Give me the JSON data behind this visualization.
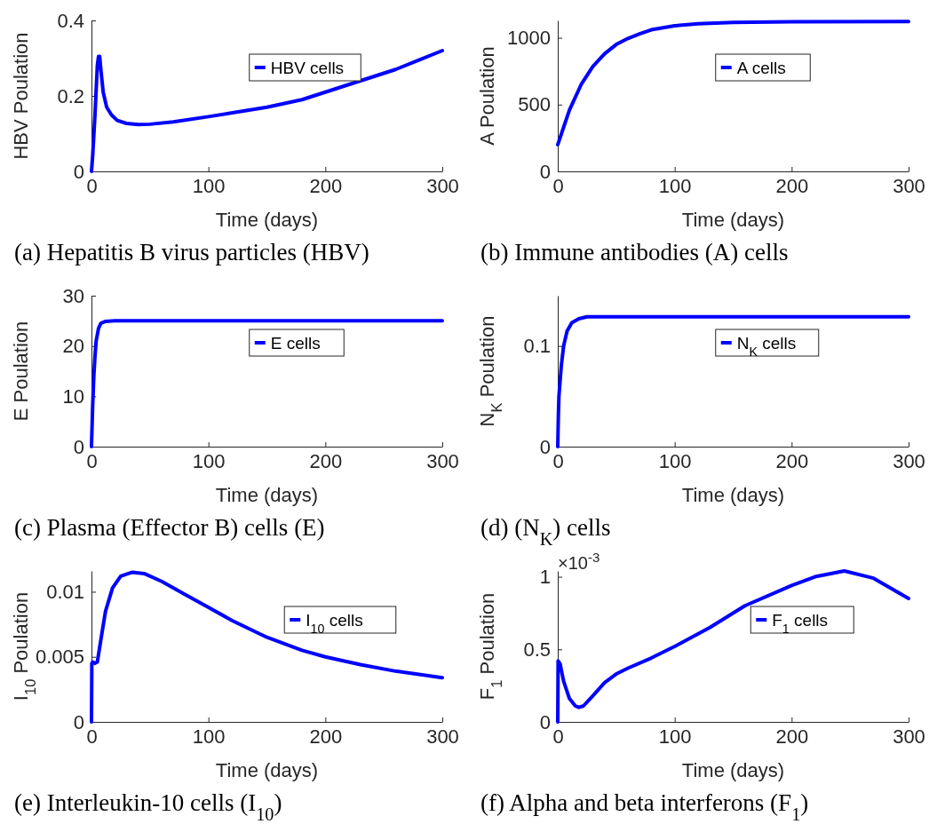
{
  "chart_data": [
    {
      "type": "line",
      "title": "(a) Hepatitis B virus particles (HBV)",
      "xlabel": "Time (days)",
      "ylabel": "HBV Poulation",
      "xlim": [
        0,
        300
      ],
      "xticks": [
        0,
        100,
        200,
        300
      ],
      "ylim": [
        0,
        0.4
      ],
      "yticks": [
        0,
        0.2,
        0.4
      ],
      "legend": "top right",
      "grid": false,
      "x": [
        0,
        1,
        3,
        5,
        6,
        7,
        8,
        10,
        13,
        17,
        22,
        30,
        40,
        50,
        70,
        100,
        130,
        150,
        180,
        200,
        230,
        260,
        280,
        300
      ],
      "series": [
        {
          "name": "HBV cells",
          "color": "#0000ff",
          "values": [
            0,
            0.04,
            0.15,
            0.28,
            0.305,
            0.305,
            0.27,
            0.21,
            0.17,
            0.15,
            0.135,
            0.127,
            0.124,
            0.125,
            0.131,
            0.145,
            0.16,
            0.17,
            0.19,
            0.21,
            0.24,
            0.27,
            0.295,
            0.32
          ]
        }
      ]
    },
    {
      "type": "line",
      "title": "(b) Immune antibodies (A) cells",
      "xlabel": "Time (days)",
      "ylabel": "A Poulation",
      "xlim": [
        0,
        300
      ],
      "xticks": [
        0,
        100,
        200,
        300
      ],
      "ylim": [
        0,
        1130
      ],
      "yticks": [
        0,
        500,
        1000
      ],
      "legend": "top right",
      "grid": false,
      "x": [
        0,
        10,
        20,
        30,
        40,
        50,
        60,
        70,
        80,
        100,
        120,
        150,
        200,
        300
      ],
      "series": [
        {
          "name": "A cells",
          "color": "#0000ff",
          "values": [
            200,
            460,
            650,
            785,
            880,
            950,
            995,
            1030,
            1060,
            1090,
            1105,
            1115,
            1120,
            1122
          ]
        }
      ]
    },
    {
      "type": "line",
      "title": "(c) Plasma (Effector B) cells (E)",
      "xlabel": "Time (days)",
      "ylabel": "E Poulation",
      "xlim": [
        0,
        300
      ],
      "xticks": [
        0,
        100,
        200,
        300
      ],
      "ylim": [
        0,
        30
      ],
      "yticks": [
        0,
        10,
        20,
        30
      ],
      "legend": "top right",
      "grid": false,
      "x": [
        0,
        1,
        2,
        3,
        4,
        6,
        8,
        12,
        20,
        300
      ],
      "series": [
        {
          "name": "E cells",
          "color": "#0000ff",
          "values": [
            0,
            8,
            14,
            18,
            21,
            23.5,
            24.5,
            24.9,
            25,
            25
          ]
        }
      ]
    },
    {
      "type": "line",
      "title": "(d) (N$_{K}$) cells",
      "xlabel": "Time (days)",
      "ylabel": "N$_{K}$ Poulation",
      "xlim": [
        0,
        300
      ],
      "xticks": [
        0,
        100,
        200,
        300
      ],
      "ylim": [
        0,
        0.15
      ],
      "yticks": [
        0,
        0.1
      ],
      "legend": "top right",
      "grid": false,
      "x": [
        0,
        0.5,
        1,
        3,
        5,
        8,
        12,
        18,
        25,
        40,
        300
      ],
      "series": [
        {
          "name": "N$_{K}$ cells",
          "color": "#0000ff",
          "values": [
            0,
            0.03,
            0.05,
            0.08,
            0.1,
            0.115,
            0.123,
            0.127,
            0.129,
            0.129,
            0.129
          ]
        }
      ]
    },
    {
      "type": "line",
      "title": "(e) Interleukin-10 cells (I$_{10}$)",
      "xlabel": "Time (days)",
      "ylabel": "I$_{10}$ Poulation",
      "xlim": [
        0,
        300
      ],
      "xticks": [
        0,
        100,
        200,
        300
      ],
      "ylim": [
        0,
        0.0116
      ],
      "yticks": [
        0,
        0.005,
        0.01
      ],
      "legend": "right",
      "grid": false,
      "x": [
        0,
        0.3,
        1,
        3,
        5,
        8,
        12,
        18,
        25,
        35,
        45,
        60,
        80,
        100,
        120,
        150,
        180,
        200,
        230,
        260,
        300
      ],
      "series": [
        {
          "name": "I$_{10}$ cells",
          "color": "#0000ff",
          "values": [
            0,
            0.0045,
            0.0046,
            0.0045,
            0.0046,
            0.0063,
            0.0085,
            0.0103,
            0.0112,
            0.0115,
            0.0114,
            0.0108,
            0.0098,
            0.0088,
            0.0078,
            0.0065,
            0.0055,
            0.005,
            0.0044,
            0.0039,
            0.0034
          ]
        }
      ]
    },
    {
      "type": "line",
      "title": "(f) Alpha and beta interferons (F$_{1}$)",
      "xlabel": "Time (days)",
      "ylabel": "F$_{1}$ Poulation",
      "annotations": [
        "×10$^{-3}$"
      ],
      "xlim": [
        0,
        300
      ],
      "xticks": [
        0,
        100,
        200,
        300
      ],
      "ylim": [
        0,
        1.04
      ],
      "yticks": [
        0,
        0.5,
        1
      ],
      "legend": "right",
      "grid": false,
      "x": [
        0,
        0.3,
        2,
        5,
        10,
        15,
        18,
        22,
        30,
        40,
        50,
        60,
        80,
        100,
        130,
        160,
        200,
        220,
        245,
        270,
        300
      ],
      "series": [
        {
          "name": "F$_{1}$ cells",
          "color": "#0000ff",
          "values": [
            0,
            0.42,
            0.4,
            0.28,
            0.16,
            0.11,
            0.1,
            0.11,
            0.18,
            0.27,
            0.33,
            0.37,
            0.44,
            0.52,
            0.65,
            0.8,
            0.94,
            1.0,
            1.04,
            0.99,
            0.85
          ]
        }
      ]
    }
  ]
}
